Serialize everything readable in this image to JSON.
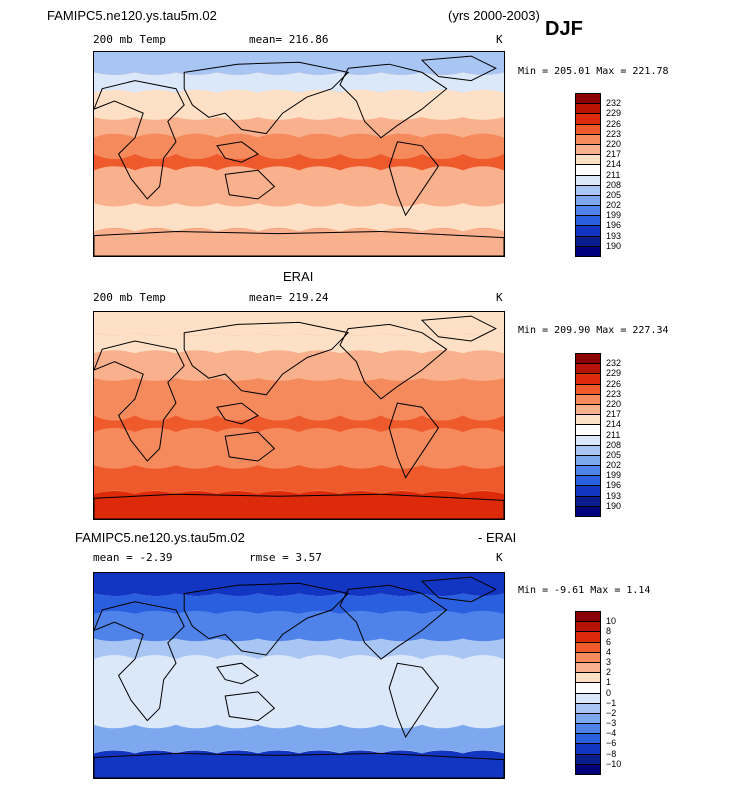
{
  "header": {
    "case_name": "FAMIPC5.ne120.ys.tau5m.02",
    "years": "(yrs 2000-2003)",
    "season": "DJF"
  },
  "panels": [
    {
      "id": "model",
      "title": "",
      "left_label": "200 mb Temp",
      "center_label": "mean=  216.86",
      "units": "K",
      "minmax": "Min = 205.01 Max = 221.78",
      "colorbar": {
        "levels": [
          "232",
          "229",
          "226",
          "223",
          "220",
          "217",
          "214",
          "211",
          "208",
          "205",
          "202",
          "199",
          "196",
          "193",
          "190"
        ],
        "colors": [
          "#8b0000",
          "#b81204",
          "#dd2a0a",
          "#ee5a2b",
          "#f58a5c",
          "#f9b08d",
          "#fde0c6",
          "#ffffff",
          "#dbe8fa",
          "#a9c5f4",
          "#7da8ef",
          "#4f83ea",
          "#2a5fe0",
          "#1235c2",
          "#0a1d8c",
          "#00007a"
        ]
      },
      "field": {
        "background": "#f58a5c",
        "bands": [
          {
            "name": "arctic",
            "color": "#a9c5f4"
          },
          {
            "name": "high-north",
            "color": "#dbe8fa"
          },
          {
            "name": "mid-north",
            "color": "#fde0c6"
          },
          {
            "name": "subtropics-north",
            "color": "#f9b08d"
          },
          {
            "name": "tropics",
            "color": "#f58a5c"
          },
          {
            "name": "warm-pool",
            "color": "#ee5a2b"
          },
          {
            "name": "southern-mid",
            "color": "#f9b08d"
          },
          {
            "name": "southern-high",
            "color": "#fde0c6"
          },
          {
            "name": "antarctic",
            "color": "#f9b08d"
          }
        ]
      }
    },
    {
      "id": "obs",
      "title": "ERAI",
      "left_label": "200 mb Temp",
      "center_label": "mean=  219.24",
      "units": "K",
      "minmax": "Min = 209.90 Max = 227.34",
      "colorbar": {
        "levels": [
          "232",
          "229",
          "226",
          "223",
          "220",
          "217",
          "214",
          "211",
          "208",
          "205",
          "202",
          "199",
          "196",
          "193",
          "190"
        ],
        "colors": [
          "#8b0000",
          "#b81204",
          "#dd2a0a",
          "#ee5a2b",
          "#f58a5c",
          "#f9b08d",
          "#fde0c6",
          "#ffffff",
          "#dbe8fa",
          "#a9c5f4",
          "#7da8ef",
          "#4f83ea",
          "#2a5fe0",
          "#1235c2",
          "#0a1d8c",
          "#00007a"
        ]
      },
      "field": {
        "background": "#f58a5c",
        "bands": [
          {
            "name": "arctic",
            "color": "#fde0c6"
          },
          {
            "name": "high-north",
            "color": "#fde0c6"
          },
          {
            "name": "mid-north",
            "color": "#f9b08d"
          },
          {
            "name": "subtropics-north",
            "color": "#f58a5c"
          },
          {
            "name": "tropics",
            "color": "#f58a5c"
          },
          {
            "name": "warm-pool",
            "color": "#ee5a2b"
          },
          {
            "name": "southern-mid",
            "color": "#f58a5c"
          },
          {
            "name": "southern-high",
            "color": "#ee5a2b"
          },
          {
            "name": "antarctic",
            "color": "#dd2a0a"
          }
        ]
      }
    },
    {
      "id": "diff",
      "title_left": "FAMIPC5.ne120.ys.tau5m.02",
      "title_right": "- ERAI",
      "left_label": "mean =   -2.39",
      "center_label": "rmse =    3.57",
      "units": "K",
      "minmax": "Min =  -9.61 Max =   1.14",
      "colorbar": {
        "levels": [
          "10",
          "8",
          "6",
          "4",
          "3",
          "2",
          "1",
          "0",
          "−1",
          "−2",
          "−3",
          "−4",
          "−6",
          "−8",
          "−10"
        ],
        "colors": [
          "#8b0000",
          "#b81204",
          "#dd2a0a",
          "#ee5a2b",
          "#f58a5c",
          "#f9b08d",
          "#fde0c6",
          "#ffffff",
          "#dbe8fa",
          "#a9c5f4",
          "#7da8ef",
          "#4f83ea",
          "#2a5fe0",
          "#1235c2",
          "#0a1d8c",
          "#00007a"
        ]
      },
      "field": {
        "background": "#dbe8fa",
        "bands": [
          {
            "name": "arctic",
            "color": "#1235c2"
          },
          {
            "name": "high-north",
            "color": "#2a5fe0"
          },
          {
            "name": "mid-north",
            "color": "#4f83ea"
          },
          {
            "name": "subtropics-north",
            "color": "#a9c5f4"
          },
          {
            "name": "tropics",
            "color": "#dbe8fa"
          },
          {
            "name": "warm-pool",
            "color": "#dbe8fa"
          },
          {
            "name": "southern-mid",
            "color": "#dbe8fa"
          },
          {
            "name": "southern-high",
            "color": "#7da8ef"
          },
          {
            "name": "antarctic",
            "color": "#1235c2"
          }
        ]
      }
    }
  ]
}
